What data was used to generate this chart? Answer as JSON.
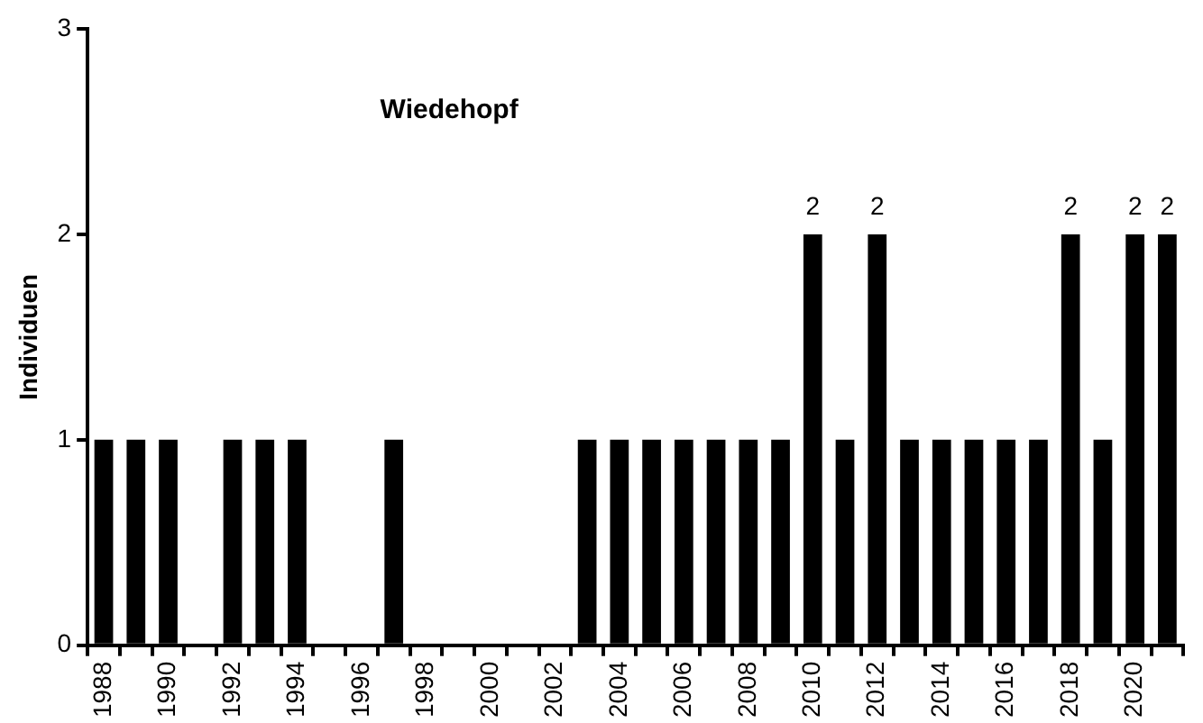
{
  "chart_data": {
    "type": "bar",
    "title": "Wiedehopf",
    "ylabel": "Individuen",
    "categories": [
      "1988",
      null,
      "1990",
      null,
      "1992",
      null,
      "1994",
      null,
      "1996",
      null,
      "1998",
      null,
      "2000",
      null,
      "2002",
      null,
      "2004",
      null,
      "2006",
      null,
      "2008",
      null,
      "2010",
      null,
      "2012",
      null,
      "2014",
      null,
      "2016",
      null,
      "2018",
      null,
      "2020",
      null
    ],
    "values": [
      1,
      1,
      1,
      0,
      1,
      1,
      1,
      0,
      0,
      1,
      0,
      0,
      0,
      0,
      0,
      1,
      1,
      1,
      1,
      1,
      1,
      1,
      2,
      1,
      2,
      1,
      1,
      1,
      1,
      1,
      2,
      1,
      2,
      2
    ],
    "value_labels": [
      null,
      null,
      null,
      null,
      null,
      null,
      null,
      null,
      null,
      null,
      null,
      null,
      null,
      null,
      null,
      null,
      null,
      null,
      null,
      null,
      null,
      null,
      "2",
      null,
      "2",
      null,
      null,
      null,
      null,
      null,
      "2",
      null,
      "2",
      "2"
    ],
    "color": "#000000",
    "ylim": [
      0,
      3
    ],
    "yticks": [
      0,
      1,
      2,
      3
    ],
    "grid": false,
    "legend": false
  }
}
